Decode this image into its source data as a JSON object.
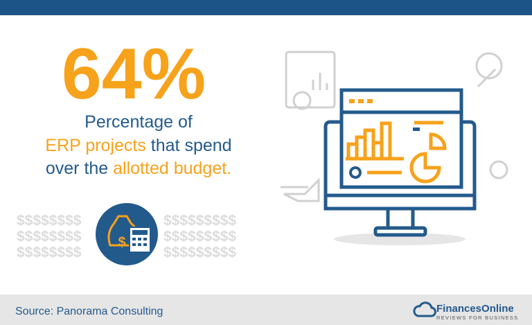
{
  "headline": "64%",
  "caption": {
    "line1": "Percentage of",
    "line2": [
      "ERP projects",
      " that spend"
    ],
    "line3": [
      "over the ",
      "allotted budget."
    ]
  },
  "decoration": {
    "dollars_left": [
      "$$$$$$$$",
      "$$$$$$$$",
      "$$$$$$$$"
    ],
    "dollars_right": [
      "$$$$$$$$$",
      "$$$$$$$$$",
      "$$$$$$$$$"
    ]
  },
  "footer": {
    "source": "Source: Panorama Consulting",
    "brand": "FinancesOnline",
    "tagline": "REVIEWS FOR BUSINESS"
  }
}
